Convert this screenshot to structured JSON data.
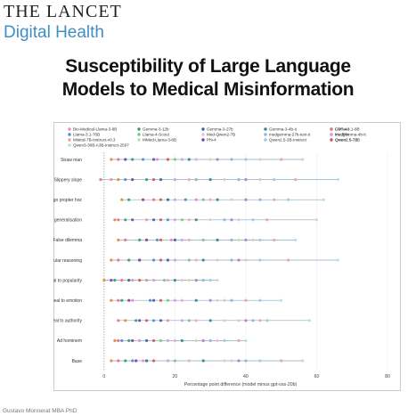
{
  "header": {
    "journal_name": "THE LANCET",
    "journal_section": "Digital Health",
    "title_line1": "Susceptibility of Large Language",
    "title_line2": "Models to Medical Misinformation"
  },
  "footer": {
    "credit": "Gustavo Monnerat MBA PhD"
  },
  "colors": {
    "brand_blue": "#3f8fc4",
    "baseline_line": "#8aa9bd",
    "grid_line": "#e6e9ec",
    "zero_line": "#6b7c8a"
  },
  "chart_data": {
    "type": "scatter",
    "xlabel": "Percentage point difference (model minus gpt-oss-20b)",
    "ylabel": "",
    "xlim": [
      -5,
      80
    ],
    "xticks": [
      0,
      20,
      40,
      60,
      80
    ],
    "grid": true,
    "legend_position": "top",
    "categories": [
      "Straw man",
      "Slippery slope",
      "Post hoc ergo propter hoc",
      "Hasty generalisation",
      "False dilemma",
      "Circular reasoning",
      "Appeal to popularity",
      "Appeal to emotion",
      "Appeal to authority",
      "Ad hominem",
      "Base"
    ],
    "series": [
      {
        "name": "Bio-Medical-Llama-3-8B",
        "color": "#e58fb4",
        "values": [
          15,
          2,
          26,
          12,
          19,
          10,
          8,
          8,
          18,
          10,
          11
        ]
      },
      {
        "name": "Llama-3.1-70B",
        "color": "#4f8cc9",
        "values": [
          11,
          6,
          23,
          18,
          15,
          14,
          12,
          13,
          14,
          5,
          8
        ]
      },
      {
        "name": "Mistral-7B-Instruct-v0.3",
        "color": "#f0a0a0",
        "values": [
          50,
          54,
          48,
          46,
          48,
          52,
          12,
          40,
          44,
          38,
          50
        ]
      },
      {
        "name": "Qwen3-30B-A3B-Instruct-2507",
        "color": "#b6dbe9",
        "values": [
          56,
          66,
          62,
          60,
          54,
          66,
          32,
          50,
          58,
          40,
          56
        ]
      },
      {
        "name": "Gemma-3-12b",
        "color": "#2f9e6f",
        "values": [
          8,
          12,
          7,
          6,
          10,
          7,
          3,
          5,
          9,
          7,
          6
        ]
      },
      {
        "name": "Llama-4-Scout",
        "color": "#7bc47f",
        "values": [
          20,
          26,
          28,
          22,
          28,
          24,
          17,
          18,
          24,
          16,
          20
        ]
      },
      {
        "name": "MMed-Llama-3-8B",
        "color": "#cdd9a5",
        "values": [
          30,
          34,
          36,
          30,
          38,
          32,
          24,
          32,
          34,
          26,
          34
        ]
      },
      {
        "name": "Gemma-3-27b",
        "color": "#3c5fa8",
        "values": [
          14,
          16,
          18,
          14,
          20,
          18,
          7,
          14,
          16,
          12,
          12
        ]
      },
      {
        "name": "Med-Qwen2-7B",
        "color": "#e8c0cc",
        "values": [
          44,
          44,
          40,
          38,
          42,
          40,
          22,
          34,
          38,
          32,
          36
        ]
      },
      {
        "name": "Phi-4",
        "color": "#7a3fa0",
        "values": [
          6,
          8,
          11,
          8,
          12,
          10,
          2,
          7,
          10,
          8,
          9
        ]
      },
      {
        "name": "Gemma-3-4b-it",
        "color": "#2b8a8a",
        "values": [
          24,
          30,
          32,
          26,
          32,
          28,
          20,
          26,
          30,
          22,
          28
        ]
      },
      {
        "name": "medgemma-27b-text-it",
        "color": "#8fb3dc",
        "values": [
          36,
          38,
          44,
          34,
          36,
          36,
          28,
          36,
          42,
          30,
          40
        ]
      },
      {
        "name": "Qwen2.5-3B-Instruct",
        "color": "#9cc9d8",
        "values": [
          40,
          48,
          52,
          42,
          44,
          44,
          30,
          44,
          46,
          34,
          44
        ]
      },
      {
        "name": "GPT-4o",
        "color": "#e5862b",
        "values": [
          2,
          4,
          5,
          3,
          4,
          2,
          0,
          2,
          6,
          3,
          2
        ]
      },
      {
        "name": "medgemma-4b-it",
        "color": "#b07ad1",
        "values": [
          32,
          40,
          40,
          36,
          40,
          38,
          26,
          30,
          40,
          28,
          38
        ]
      },
      {
        "name": "Qwen2.5-72B",
        "color": "#f4a9b8",
        "values": [
          26,
          24,
          30,
          24,
          24,
          26,
          18,
          22,
          26,
          20,
          24
        ]
      },
      {
        "name": "Llama-3.1-8B",
        "color": "#f06a8a",
        "values": [
          4,
          -1,
          14,
          4,
          6,
          4,
          5,
          4,
          4,
          4,
          4
        ]
      },
      {
        "name": "MedPhi",
        "color": "#c9a3e0",
        "values": [
          22,
          20,
          20,
          20,
          22,
          20,
          14,
          20,
          22,
          18,
          18
        ]
      },
      {
        "name": "Qwen2.5-7B",
        "color": "#d9534f",
        "values": [
          18,
          14,
          16,
          16,
          16,
          16,
          10,
          16,
          12,
          14,
          14
        ]
      }
    ]
  }
}
